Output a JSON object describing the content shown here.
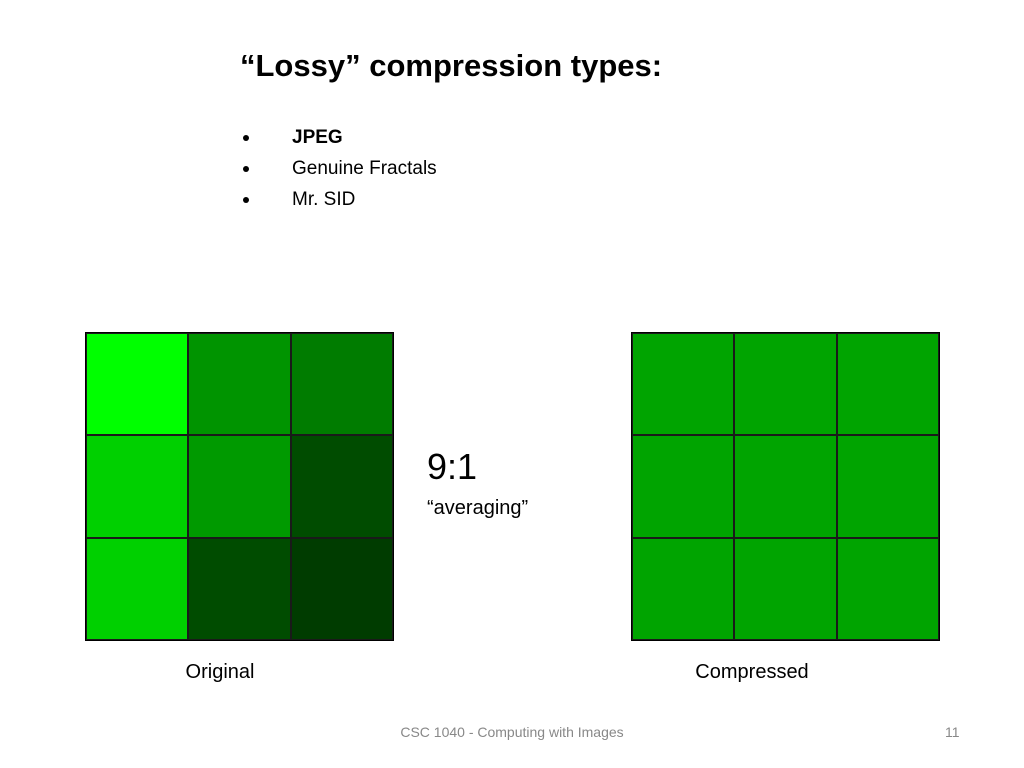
{
  "title": "“Lossy” compression types:",
  "bullets": [
    "JPEG",
    "Genuine Fractals",
    "Mr. SID"
  ],
  "ratio": "9:1",
  "ratio_note": "“averaging”",
  "captions": {
    "original": "Original",
    "compressed": "Compressed"
  },
  "footer": "CSC 1040 - Computing with Images",
  "page_number": 11
}
